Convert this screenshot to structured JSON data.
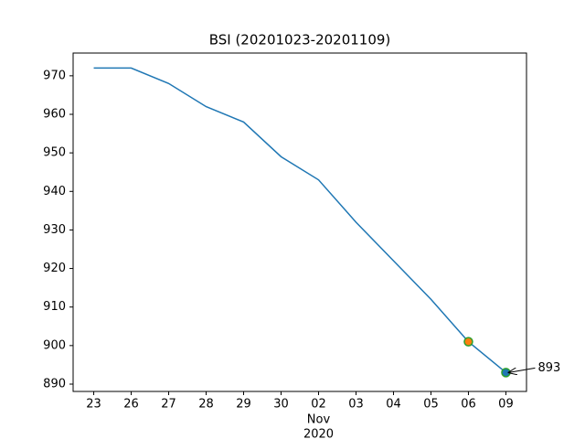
{
  "chart_data": {
    "type": "line",
    "title": "BSI (20201023-20201109)",
    "categories": [
      "23",
      "26",
      "27",
      "28",
      "29",
      "30",
      "02",
      "03",
      "04",
      "05",
      "06",
      "09"
    ],
    "x_sublabel": {
      "category_index": 6,
      "lines": [
        "Nov",
        "2020"
      ]
    },
    "series": [
      {
        "color": "#1f77b4",
        "values": [
          972,
          972,
          968,
          962,
          958,
          949,
          943,
          932,
          922,
          912,
          901,
          893
        ]
      }
    ],
    "highlights": [
      {
        "index": 10,
        "color": "#ff7f0e",
        "edge": "#2ca02c"
      },
      {
        "index": 11,
        "color": "#1f77b4",
        "edge": "#2ca02c"
      }
    ],
    "annotation": {
      "index": 11,
      "label": "893"
    },
    "xlim": [
      -0.55,
      11.55
    ],
    "ylim": [
      888.1,
      975.9
    ],
    "yticks": [
      890,
      900,
      910,
      920,
      930,
      940,
      950,
      960,
      970
    ],
    "grid": false
  }
}
